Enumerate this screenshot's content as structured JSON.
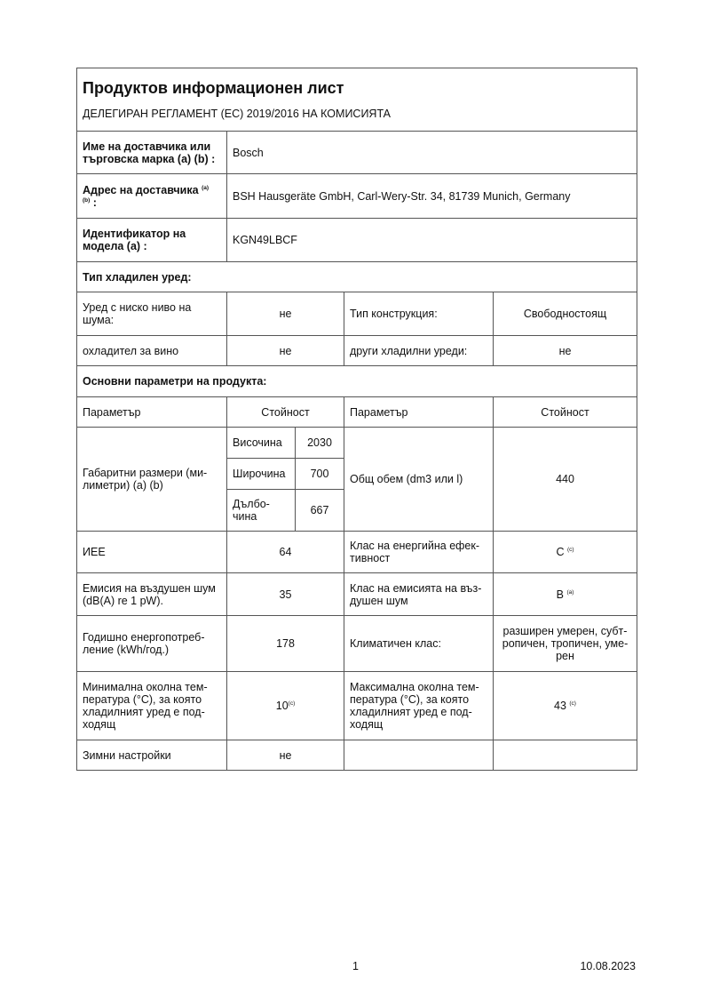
{
  "title": "Продуктов информационен лист",
  "subtitle": "ДЕЛЕГИРАН РЕГЛАМЕНТ (ЕС) 2019/2016 НА КОМИСИЯТА",
  "supplier": {
    "label": "Име на доставчика или търговска марка (a) (b) :",
    "value": "Bosch"
  },
  "address": {
    "label": "Адрес на доставчика",
    "label_sup1": "(a)",
    "label_sup2": "(b)",
    "label_end": ":",
    "value": "BSH Hausgeräte GmbH, Carl-Wery-Str. 34, 81739 Munich, Germany"
  },
  "model": {
    "label": "Идентификатор на модела (a) :",
    "value": "KGN49LBCF"
  },
  "type_section": "Тип хладилен уред:",
  "type_rows": [
    {
      "p1": "Уред с ниско ниво на шума:",
      "v1": "не",
      "p2": "Тип конструкция:",
      "v2": "Свободностоящ"
    },
    {
      "p1": "охладител за вино",
      "v1": "не",
      "p2": "други хладилни уреди:",
      "v2": "не"
    }
  ],
  "params_section": "Основни параметри на продукта:",
  "headers": {
    "param": "Параметър",
    "value": "Стойност",
    "param2": "Параметър",
    "value2": "Стойност"
  },
  "dimensions": {
    "label": "Габаритни размери (ми-лиметри) (a) (b)",
    "height_label": "Височина",
    "height": "2030",
    "width_label": "Широчина",
    "width": "700",
    "depth_label": "Дълбо-чина",
    "depth": "667",
    "volume_label": "Общ обем (dm3 или l)",
    "volume": "440"
  },
  "rows": [
    {
      "p1": "ИЕЕ",
      "v1": "64",
      "v1_sup": "",
      "p2": "Клас на енергийна ефек-тивност",
      "v2": "C",
      "v2_sup": "(c)"
    },
    {
      "p1": "Емисия на въздушен шум (dB(A) re 1 pW).",
      "v1": "35",
      "v1_sup": "",
      "p2": "Клас на емисията на въз-душен шум",
      "v2": "B",
      "v2_sup": "(a)"
    },
    {
      "p1": "Годишно енергопотреб-ление (kWh/год.)",
      "v1": "178",
      "v1_sup": "",
      "p2": "Климатичен клас:",
      "v2": "разширен умерен, субт-ропичен, тропичен, уме-рен",
      "v2_sup": ""
    },
    {
      "p1": "Минимална околна тем-пература (°C), за която хладилният уред е под-ходящ",
      "v1": "10",
      "v1_sup": "(c)",
      "p2": "Максимална околна тем-пература (°C), за която хладилният уред е под-ходящ",
      "v2": "43",
      "v2_sup": "(c)"
    },
    {
      "p1": "Зимни настройки",
      "v1": "не",
      "v1_sup": "",
      "p2": "",
      "v2": "",
      "v2_sup": ""
    }
  ],
  "footer": {
    "page": "1",
    "date": "10.08.2023"
  }
}
